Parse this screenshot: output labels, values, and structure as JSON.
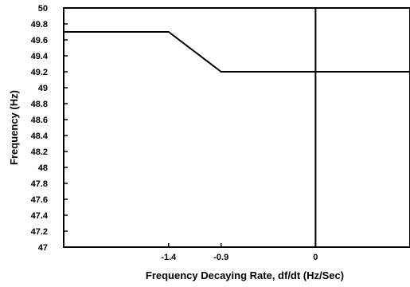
{
  "chart_data": {
    "type": "line",
    "title": "",
    "xlabel": "Frequency Decaying Rate, df/dt (Hz/Sec)",
    "ylabel": "Frequency (Hz)",
    "xlim": [
      -2.4,
      0.9
    ],
    "ylim": [
      47,
      50
    ],
    "x_ticks": [
      -1.4,
      -0.9,
      0
    ],
    "x_tick_labels": [
      "-1.4",
      "-0.9",
      "0"
    ],
    "y_ticks": [
      47,
      47.2,
      47.4,
      47.6,
      47.8,
      48,
      48.2,
      48.4,
      48.6,
      48.8,
      49,
      49.2,
      49.4,
      49.6,
      49.8,
      50
    ],
    "y_tick_labels": [
      "47",
      "47.2",
      "47.4",
      "47.6",
      "47.8",
      "48",
      "48.2",
      "48.4",
      "48.6",
      "48.8",
      "49",
      "49.2",
      "49.4",
      "49.6",
      "49.8",
      "50"
    ],
    "grid": false,
    "legend": false,
    "reference_lines": [
      {
        "orientation": "vertical",
        "x": 0
      }
    ],
    "series": [
      {
        "x": [
          -2.4,
          -1.4,
          -0.9,
          0.9
        ],
        "y": [
          49.7,
          49.7,
          49.2,
          49.2
        ]
      }
    ]
  }
}
